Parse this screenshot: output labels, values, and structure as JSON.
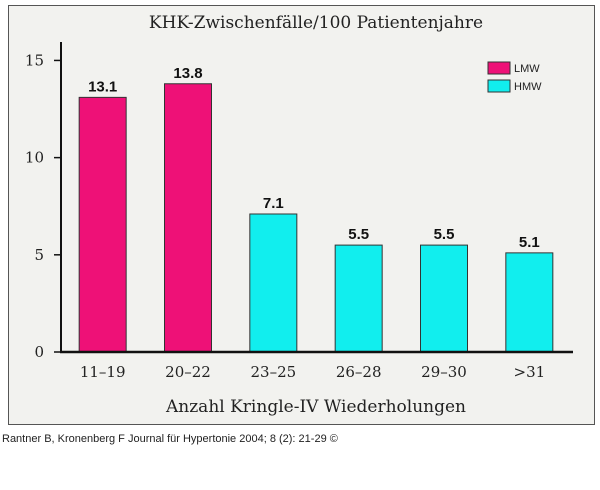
{
  "chart_data": {
    "type": "bar",
    "title": "KHK-Zwischenfälle/100 Patientenjahre",
    "xlabel": "Anzahl Kringle-IV Wiederholungen",
    "ylabel": "",
    "ylim": [
      0,
      16
    ],
    "yticks": [
      0,
      5,
      10,
      15
    ],
    "categories": [
      "11–19",
      "20–22",
      "23–25",
      "26–28",
      "29–30",
      ">31"
    ],
    "series": [
      {
        "name": "LMW",
        "color": "#ee1177",
        "values": [
          13.1,
          13.8,
          null,
          null,
          null,
          null
        ]
      },
      {
        "name": "HMW",
        "color": "#11eeee",
        "values": [
          null,
          null,
          7.1,
          5.5,
          5.5,
          5.1
        ]
      }
    ],
    "data_labels": [
      "13.1",
      "13.8",
      "7.1",
      "5.5",
      "5.5",
      "5.1"
    ],
    "legend_position": "top-right",
    "grid": false
  },
  "credit": "Rantner B, Kronenberg F Journal für Hypertonie 2004; 8 (2): 21-29 ©"
}
